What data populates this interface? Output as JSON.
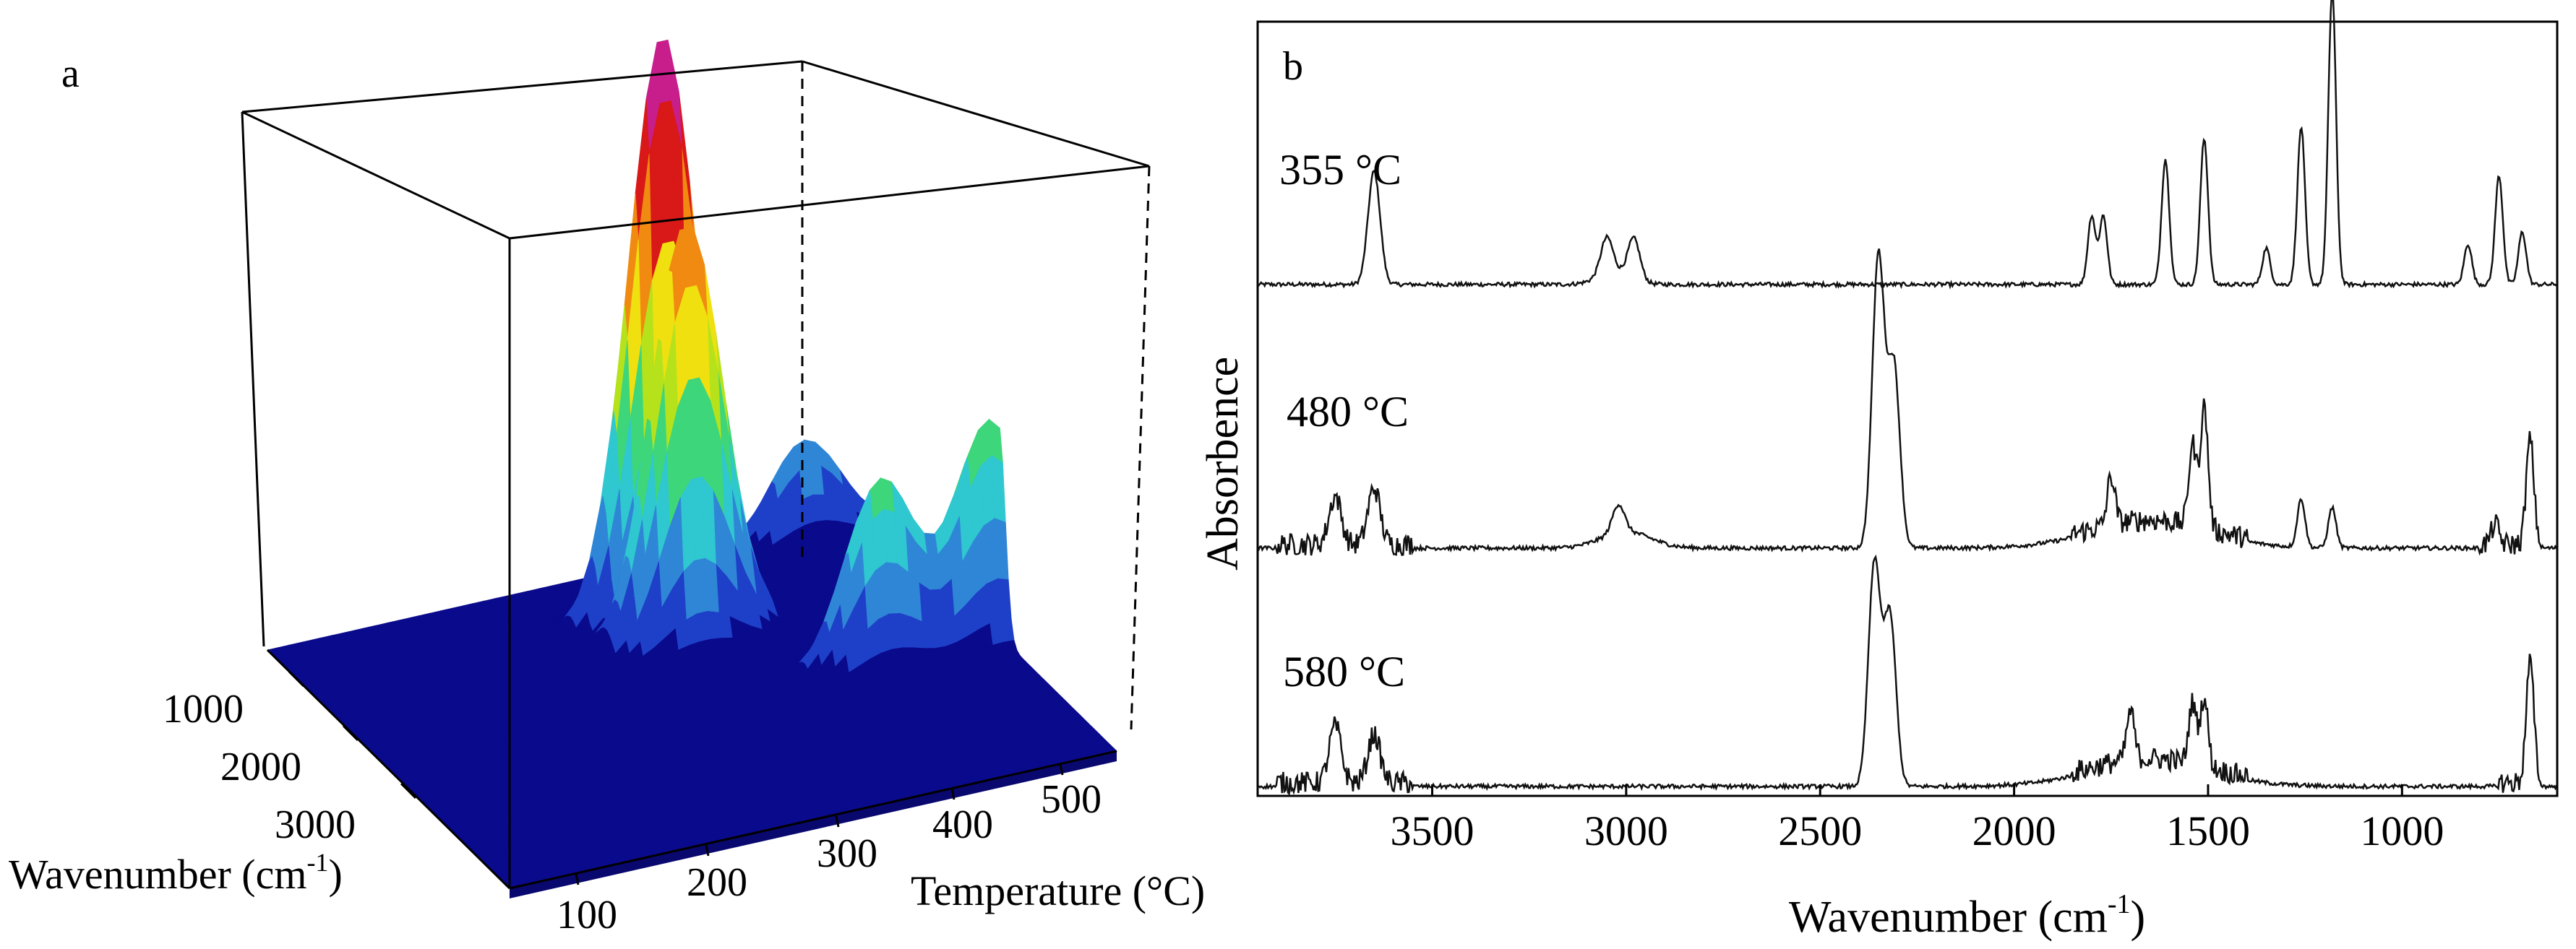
{
  "chart_data": [
    {
      "panel": "a",
      "type": "surface3d",
      "x_label": "Wavenumber (cm",
      "x_label_sup": "-1",
      "x_label_tail": ")",
      "x_ticks": [
        1000,
        2000,
        3000
      ],
      "y_label": "Temperature (°C)",
      "y_ticks": [
        100,
        200,
        300,
        400,
        500
      ],
      "colormap": [
        "#0a0a8c",
        "#1e40c8",
        "#2f86d6",
        "#2fc7d0",
        "#3ed67a",
        "#b6e21c",
        "#f0e010",
        "#f08a10",
        "#d91818",
        "#c81e8c",
        "#e14fe0"
      ],
      "peaks": [
        {
          "wavenumber": 1200,
          "temperature": 355,
          "height": 1.0
        },
        {
          "wavenumber": 1500,
          "temperature": 355,
          "height": 0.48
        },
        {
          "wavenumber": 1600,
          "temperature": 355,
          "height": 0.38
        },
        {
          "wavenumber": 2350,
          "temperature": 480,
          "height": 0.32
        },
        {
          "wavenumber": 2350,
          "temperature": 580,
          "height": 0.38
        },
        {
          "wavenumber": 700,
          "temperature": 520,
          "height": 0.17
        }
      ]
    },
    {
      "panel": "b",
      "type": "line",
      "x_label": "Wavenumber (cm",
      "x_label_sup": "-1",
      "x_label_tail": ")",
      "y_label": "Absorbence",
      "x_range": [
        3950,
        600
      ],
      "x_ticks": [
        3500,
        3000,
        2500,
        2000,
        1500,
        1000
      ],
      "series": [
        {
          "name": "355 °C",
          "peaks": [
            [
              3650,
              0.28
            ],
            [
              3050,
              0.09
            ],
            [
              2980,
              0.1
            ],
            [
              1800,
              0.17
            ],
            [
              1770,
              0.17
            ],
            [
              1610,
              0.31
            ],
            [
              1510,
              0.36
            ],
            [
              1350,
              0.09
            ],
            [
              1260,
              0.39
            ],
            [
              1180,
              0.73
            ],
            [
              830,
              0.1
            ],
            [
              750,
              0.27
            ],
            [
              690,
              0.13
            ]
          ],
          "noisy_bands": []
        },
        {
          "name": "480 °C",
          "peaks": [
            [
              3750,
              0.12
            ],
            [
              3650,
              0.14
            ],
            [
              3020,
              0.07
            ],
            [
              2350,
              0.72
            ],
            [
              2310,
              0.45
            ],
            [
              1750,
              0.12
            ],
            [
              1540,
              0.2
            ],
            [
              1510,
              0.3
            ],
            [
              1260,
              0.12
            ],
            [
              1180,
              0.1
            ],
            [
              760,
              0.05
            ],
            [
              670,
              0.26
            ]
          ],
          "noisy_bands": [
            [
              3900,
              3550
            ],
            [
              1850,
              1400
            ],
            [
              800,
              650
            ]
          ]
        },
        {
          "name": "580 °C",
          "peaks": [
            [
              3750,
              0.14
            ],
            [
              3650,
              0.12
            ],
            [
              2360,
              0.55
            ],
            [
              2320,
              0.42
            ],
            [
              1700,
              0.12
            ],
            [
              1540,
              0.15
            ],
            [
              1510,
              0.17
            ],
            [
              670,
              0.3
            ]
          ],
          "noisy_bands": [
            [
              3900,
              3550
            ],
            [
              1850,
              1400
            ],
            [
              750,
              650
            ]
          ]
        }
      ]
    }
  ]
}
